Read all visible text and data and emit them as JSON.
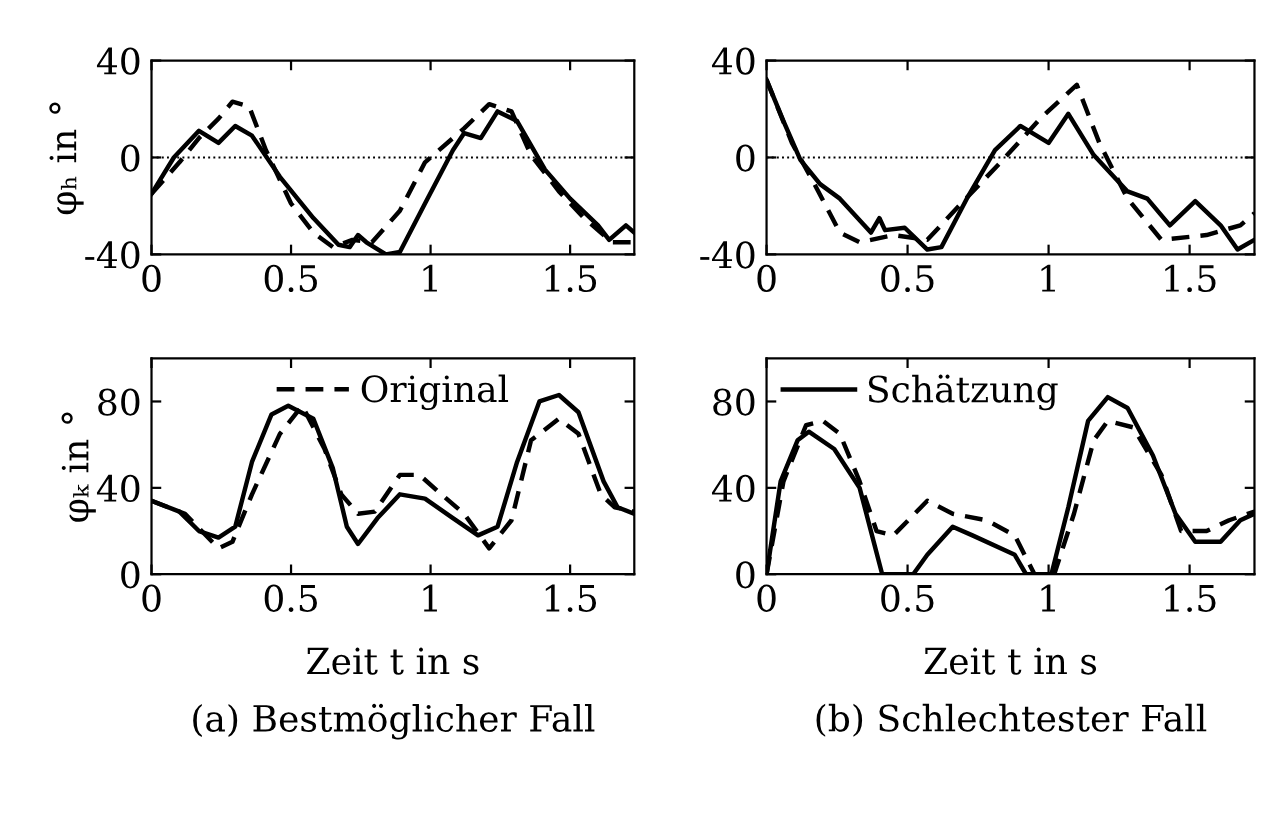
{
  "chart_data": [
    {
      "type": "line",
      "ylabel": "φₕ in °",
      "xlim": [
        0,
        1.73
      ],
      "ylim": [
        -40,
        40
      ],
      "xticks": [
        0,
        0.5,
        1,
        1.5
      ],
      "yticks": [
        -40,
        0,
        40
      ],
      "grid": false,
      "legend": false,
      "ref_lines": [
        {
          "axis": "y",
          "value": 0,
          "line_style": "dotted",
          "color": "#000000"
        }
      ],
      "series": [
        {
          "color": "#000000",
          "line_style": "solid",
          "x": [
            0,
            0.08,
            0.17,
            0.24,
            0.3,
            0.36,
            0.46,
            0.58,
            0.67,
            0.71,
            0.74,
            0.77,
            0.84,
            0.89,
            0.98,
            1.08,
            1.12,
            1.18,
            1.24,
            1.31,
            1.41,
            1.5,
            1.6,
            1.64,
            1.7,
            1.73
          ],
          "values": [
            -15,
            0,
            11,
            6,
            13,
            9,
            -8,
            -25,
            -36,
            -37,
            -32,
            -35,
            -40,
            -39,
            -19,
            3,
            10,
            8,
            19,
            15,
            -5,
            -17,
            -28,
            -34,
            -28,
            -31
          ]
        },
        {
          "color": "#000000",
          "line_style": "dashed",
          "x": [
            0,
            0.1,
            0.17,
            0.24,
            0.29,
            0.35,
            0.41,
            0.5,
            0.58,
            0.65,
            0.72,
            0.79,
            0.89,
            0.98,
            1.12,
            1.21,
            1.29,
            1.36,
            1.46,
            1.55,
            1.65,
            1.73
          ],
          "values": [
            -15,
            -2,
            8,
            16,
            23,
            21,
            3,
            -19,
            -31,
            -37,
            -34,
            -35,
            -22,
            -2,
            12,
            22,
            19,
            1,
            -14,
            -25,
            -35,
            -35
          ]
        }
      ]
    },
    {
      "type": "line",
      "xlim": [
        0,
        1.73
      ],
      "ylim": [
        -40,
        40
      ],
      "xticks": [
        0,
        0.5,
        1,
        1.5
      ],
      "yticks": [
        -40,
        0,
        40
      ],
      "grid": false,
      "legend": false,
      "ref_lines": [
        {
          "axis": "y",
          "value": 0,
          "line_style": "dotted",
          "color": "#000000"
        }
      ],
      "series": [
        {
          "color": "#000000",
          "line_style": "solid",
          "x": [
            0,
            0.06,
            0.12,
            0.19,
            0.26,
            0.37,
            0.4,
            0.42,
            0.49,
            0.57,
            0.62,
            0.71,
            0.81,
            0.9,
            1.0,
            1.07,
            1.16,
            1.28,
            1.35,
            1.43,
            1.52,
            1.61,
            1.67,
            1.73
          ],
          "values": [
            32,
            15,
            -1,
            -11,
            -17,
            -31,
            -25,
            -30,
            -29,
            -38,
            -37,
            -17,
            3,
            13,
            6,
            18,
            1,
            -14,
            -17,
            -28,
            -18,
            -28,
            -38,
            -34
          ]
        },
        {
          "color": "#000000",
          "line_style": "dashed",
          "x": [
            0,
            0.09,
            0.17,
            0.26,
            0.33,
            0.45,
            0.57,
            0.69,
            0.83,
            0.97,
            1.1,
            1.18,
            1.28,
            1.4,
            1.56,
            1.68,
            1.73
          ],
          "values": [
            32,
            6,
            -11,
            -31,
            -35,
            -32,
            -34,
            -19,
            -2,
            16,
            30,
            6,
            -17,
            -34,
            -32,
            -28,
            -23
          ]
        }
      ]
    },
    {
      "type": "line",
      "ylabel": "φₖ in °",
      "xlabel": "Zeit t in s",
      "annotations": [
        "(a) Bestmöglicher Fall"
      ],
      "xlim": [
        0,
        1.73
      ],
      "ylim": [
        0,
        100
      ],
      "xticks": [
        0,
        0.5,
        1,
        1.5
      ],
      "yticks": [
        0,
        40,
        80
      ],
      "grid": false,
      "legend": "top",
      "series": [
        {
          "color": "#000000",
          "line_style": "solid",
          "x": [
            0,
            0.1,
            0.17,
            0.24,
            0.3,
            0.36,
            0.43,
            0.49,
            0.58,
            0.65,
            0.7,
            0.74,
            0.81,
            0.89,
            0.98,
            1.08,
            1.17,
            1.24,
            1.31,
            1.39,
            1.46,
            1.53,
            1.62,
            1.67,
            1.73
          ],
          "values": [
            34,
            29,
            20,
            17,
            22,
            52,
            74,
            78,
            72,
            49,
            22,
            14,
            26,
            37,
            35,
            26,
            18,
            22,
            52,
            80,
            83,
            75,
            43,
            31,
            28
          ]
        },
        {
          "name": "Original",
          "color": "#000000",
          "line_style": "dashed",
          "x": [
            0,
            0.12,
            0.24,
            0.29,
            0.36,
            0.46,
            0.54,
            0.62,
            0.68,
            0.74,
            0.8,
            0.89,
            0.96,
            1.03,
            1.12,
            1.21,
            1.29,
            1.36,
            1.46,
            1.53,
            1.61,
            1.66,
            1.73
          ],
          "values": [
            34,
            28,
            12,
            15,
            37,
            65,
            78,
            58,
            37,
            28,
            29,
            46,
            46,
            38,
            28,
            12,
            25,
            62,
            72,
            65,
            37,
            31,
            29
          ]
        }
      ]
    },
    {
      "type": "line",
      "xlabel": "Zeit t in s",
      "annotations": [
        "(b) Schlechtester Fall"
      ],
      "xlim": [
        0,
        1.73
      ],
      "ylim": [
        0,
        100
      ],
      "xticks": [
        0,
        0.5,
        1,
        1.5
      ],
      "yticks": [
        0,
        40,
        80
      ],
      "grid": false,
      "legend": "top left",
      "series": [
        {
          "name": "Schätzung",
          "color": "#000000",
          "line_style": "solid",
          "x": [
            0,
            0.05,
            0.11,
            0.15,
            0.24,
            0.33,
            0.38,
            0.41,
            0.52,
            0.57,
            0.66,
            0.73,
            0.88,
            0.92,
            1.01,
            1.07,
            1.14,
            1.21,
            1.28,
            1.37,
            1.45,
            1.52,
            1.61,
            1.68,
            1.73
          ],
          "values": [
            0,
            43,
            62,
            66,
            58,
            40,
            15,
            0,
            0,
            9,
            22,
            18,
            9,
            0,
            0,
            31,
            71,
            82,
            77,
            55,
            28,
            15,
            15,
            25,
            28
          ]
        },
        {
          "color": "#000000",
          "line_style": "dashed",
          "x": [
            0,
            0.06,
            0.14,
            0.2,
            0.26,
            0.33,
            0.39,
            0.45,
            0.57,
            0.66,
            0.78,
            0.88,
            0.95,
            1.02,
            1.09,
            1.16,
            1.21,
            1.3,
            1.4,
            1.47,
            1.56,
            1.64,
            1.73
          ],
          "values": [
            0,
            43,
            69,
            71,
            65,
            43,
            20,
            18,
            34,
            28,
            25,
            18,
            0,
            0,
            28,
            62,
            71,
            68,
            46,
            20,
            20,
            25,
            29
          ]
        }
      ]
    }
  ]
}
